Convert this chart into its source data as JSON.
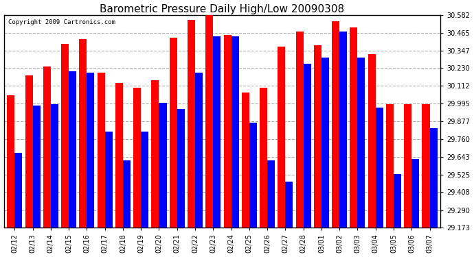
{
  "title": "Barometric Pressure Daily High/Low 20090308",
  "copyright": "Copyright 2009 Cartronics.com",
  "dates": [
    "02/12",
    "02/13",
    "02/14",
    "02/15",
    "02/16",
    "02/17",
    "02/18",
    "02/19",
    "02/20",
    "02/21",
    "02/22",
    "02/23",
    "02/24",
    "02/25",
    "02/26",
    "02/27",
    "02/28",
    "03/01",
    "03/02",
    "03/03",
    "03/04",
    "03/05",
    "03/06",
    "03/07"
  ],
  "highs": [
    30.05,
    30.18,
    30.24,
    30.39,
    30.42,
    30.2,
    30.13,
    30.1,
    30.15,
    30.43,
    30.55,
    30.58,
    30.45,
    30.07,
    30.1,
    30.37,
    30.47,
    30.38,
    30.54,
    30.5,
    30.32,
    29.99,
    29.99,
    29.99
  ],
  "lows": [
    29.67,
    29.98,
    29.99,
    30.21,
    30.2,
    29.81,
    29.62,
    29.81,
    30.0,
    29.96,
    30.2,
    30.44,
    30.44,
    29.87,
    29.62,
    29.48,
    30.26,
    30.3,
    30.47,
    30.3,
    29.97,
    29.53,
    29.63,
    29.83
  ],
  "high_color": "#ff0000",
  "low_color": "#0000ff",
  "background_color": "#ffffff",
  "grid_color": "#aaaaaa",
  "title_fontsize": 11,
  "ymin": 29.173,
  "ymax": 30.582,
  "yticks": [
    29.173,
    29.29,
    29.408,
    29.525,
    29.643,
    29.76,
    29.877,
    29.995,
    30.112,
    30.23,
    30.347,
    30.465,
    30.582
  ]
}
